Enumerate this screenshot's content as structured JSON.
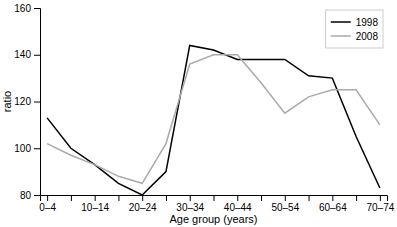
{
  "chart_data": {
    "type": "line",
    "xlabel": "Age group (years)",
    "ylabel": "ratio",
    "categories": [
      "0–4",
      null,
      "10–14",
      null,
      "20–24",
      null,
      "30–34",
      null,
      "40–44",
      null,
      "50–54",
      null,
      "60–64",
      null,
      "70–74"
    ],
    "series": [
      {
        "name": "1998",
        "color": "#000000",
        "values": [
          113,
          100,
          93,
          85,
          80,
          90,
          144,
          142,
          138,
          138,
          138,
          131,
          130,
          105,
          83
        ]
      },
      {
        "name": "2008",
        "color": "#aaaaaa",
        "values": [
          102,
          97,
          93,
          88,
          85,
          102,
          136,
          140,
          140,
          128,
          115,
          122,
          125,
          125,
          110
        ]
      }
    ],
    "ylim": [
      80,
      160
    ],
    "yticks": [
      80,
      100,
      120,
      140,
      160
    ],
    "grid": false,
    "legend": "upper right"
  }
}
